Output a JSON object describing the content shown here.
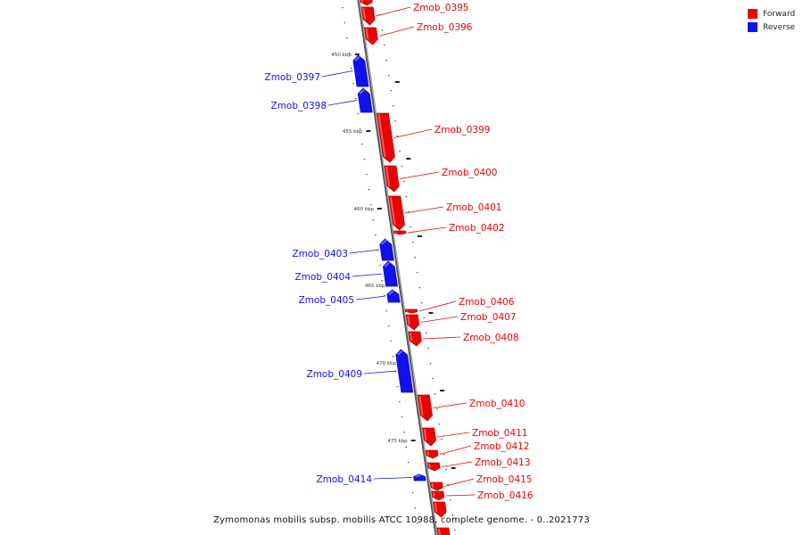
{
  "colors": {
    "forward": "#ee0000",
    "reverse": "#1111ee",
    "backbone": "#888888"
  },
  "legend": {
    "forward_label": "Forward",
    "reverse_label": "Reverse"
  },
  "caption": "Zymomonas mobilis subsp. mobilis ATCC 10988, complete genome. - 0..2021773",
  "ticks": [
    {
      "label": "450 kbp"
    },
    {
      "label": "455 kbp"
    },
    {
      "label": "460 kbp"
    },
    {
      "label": "465 kbp"
    },
    {
      "label": "470 kbp"
    },
    {
      "label": "475 kbp"
    }
  ],
  "genes": [
    {
      "name": "Zmob_0395",
      "strand": "forward"
    },
    {
      "name": "Zmob_0396",
      "strand": "forward"
    },
    {
      "name": "Zmob_0397",
      "strand": "reverse"
    },
    {
      "name": "Zmob_0398",
      "strand": "reverse"
    },
    {
      "name": "Zmob_0399",
      "strand": "forward"
    },
    {
      "name": "Zmob_0400",
      "strand": "forward"
    },
    {
      "name": "Zmob_0401",
      "strand": "forward"
    },
    {
      "name": "Zmob_0402",
      "strand": "forward"
    },
    {
      "name": "Zmob_0403",
      "strand": "reverse"
    },
    {
      "name": "Zmob_0404",
      "strand": "reverse"
    },
    {
      "name": "Zmob_0405",
      "strand": "reverse"
    },
    {
      "name": "Zmob_0406",
      "strand": "forward"
    },
    {
      "name": "Zmob_0407",
      "strand": "forward"
    },
    {
      "name": "Zmob_0408",
      "strand": "forward"
    },
    {
      "name": "Zmob_0409",
      "strand": "reverse"
    },
    {
      "name": "Zmob_0410",
      "strand": "forward"
    },
    {
      "name": "Zmob_0411",
      "strand": "forward"
    },
    {
      "name": "Zmob_0412",
      "strand": "forward"
    },
    {
      "name": "Zmob_0413",
      "strand": "forward"
    },
    {
      "name": "Zmob_0414",
      "strand": "reverse"
    },
    {
      "name": "Zmob_0415",
      "strand": "forward"
    },
    {
      "name": "Zmob_0416",
      "strand": "forward"
    }
  ]
}
